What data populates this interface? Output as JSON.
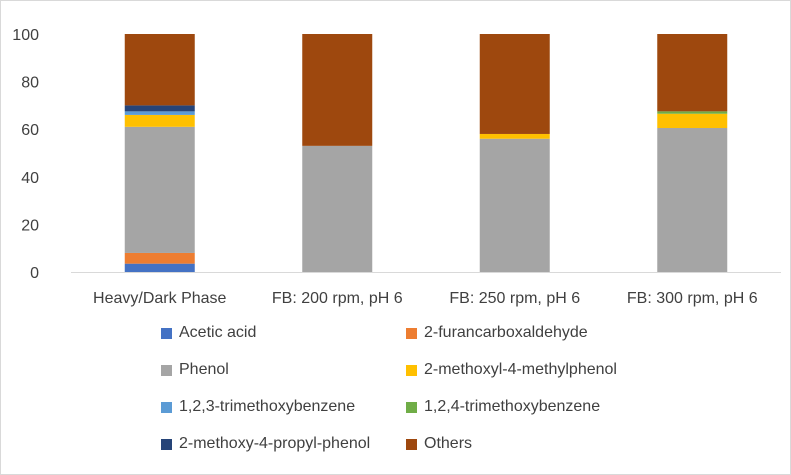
{
  "chart_data": {
    "type": "bar",
    "stacked": true,
    "title": "",
    "xlabel": "",
    "ylabel": "",
    "ylim": [
      0,
      100
    ],
    "yticks": [
      0,
      20,
      40,
      60,
      80,
      100
    ],
    "grid": false,
    "legend_position": "bottom",
    "categories": [
      "Heavy/Dark Phase",
      "FB: 200 rpm, pH 6",
      "FB: 250 rpm, pH 6",
      "FB: 300 rpm, pH 6"
    ],
    "series": [
      {
        "name": "Acetic acid",
        "color": "#4472C4",
        "values": [
          3.5,
          0,
          0,
          0
        ]
      },
      {
        "name": "2-furancarboxaldehyde",
        "color": "#ED7D31",
        "values": [
          4.5,
          0,
          0,
          0
        ]
      },
      {
        "name": "Phenol",
        "color": "#A5A5A5",
        "values": [
          53,
          53,
          56,
          60.5
        ]
      },
      {
        "name": "2-methoxyl-4-methylphenol",
        "color": "#FFC000",
        "values": [
          5,
          0,
          2,
          6
        ]
      },
      {
        "name": "1,2,3-trimethoxybenzene",
        "color": "#5B9BD5",
        "values": [
          1.5,
          0,
          0,
          0
        ]
      },
      {
        "name": "1,2,4-trimethoxybenzene",
        "color": "#70AD47",
        "values": [
          0,
          0,
          0,
          1
        ]
      },
      {
        "name": "2-methoxy-4-propyl-phenol",
        "color": "#264478",
        "values": [
          2.5,
          0,
          0,
          0
        ]
      },
      {
        "name": "Others",
        "color": "#9E480E",
        "values": [
          30,
          47,
          42,
          32.5
        ]
      }
    ]
  }
}
